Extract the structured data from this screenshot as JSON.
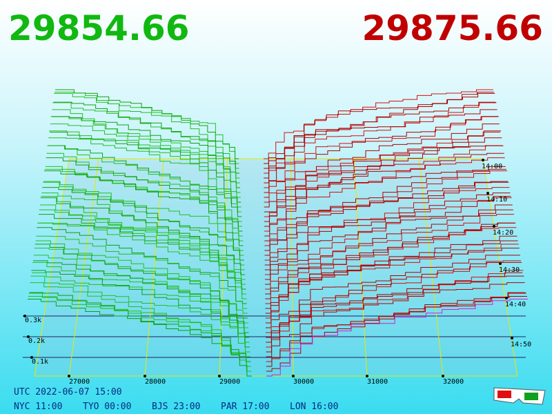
{
  "header": {
    "bid": "29854.66",
    "ask": "29875.66"
  },
  "axes": {
    "price_ticks": [
      "27000",
      "28000",
      "29000",
      "30000",
      "31000",
      "32000"
    ],
    "depth_ticks": [
      "0.3k",
      "0.2k",
      "0.1k"
    ],
    "time_ticks": [
      "14:00",
      "14:10",
      "14:20",
      "14:30",
      "14:40",
      "14:50"
    ]
  },
  "footer": {
    "utc": "UTC 2022-06-07 15:00",
    "zones": [
      "NYC 11:00",
      "TYO 00:00",
      "BJS 23:00",
      "PAR 17:00",
      "LON 16:00"
    ]
  }
}
